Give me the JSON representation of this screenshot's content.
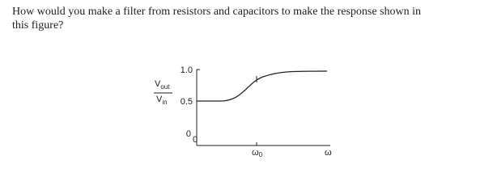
{
  "question": {
    "lines": [
      "How would you make a filter from resistors and capacitors to make the response shown in",
      "this figure?"
    ]
  },
  "figure": {
    "y_label": {
      "numerator": {
        "base": "V",
        "sub": "out"
      },
      "denominator": {
        "base": "V",
        "sub": "in"
      }
    },
    "y_ticks": [
      "1.0",
      "0.5",
      "0"
    ],
    "origin": "0",
    "x_labels": [
      {
        "base": "ω",
        "sub": "0"
      },
      {
        "base": "ω"
      }
    ]
  }
}
